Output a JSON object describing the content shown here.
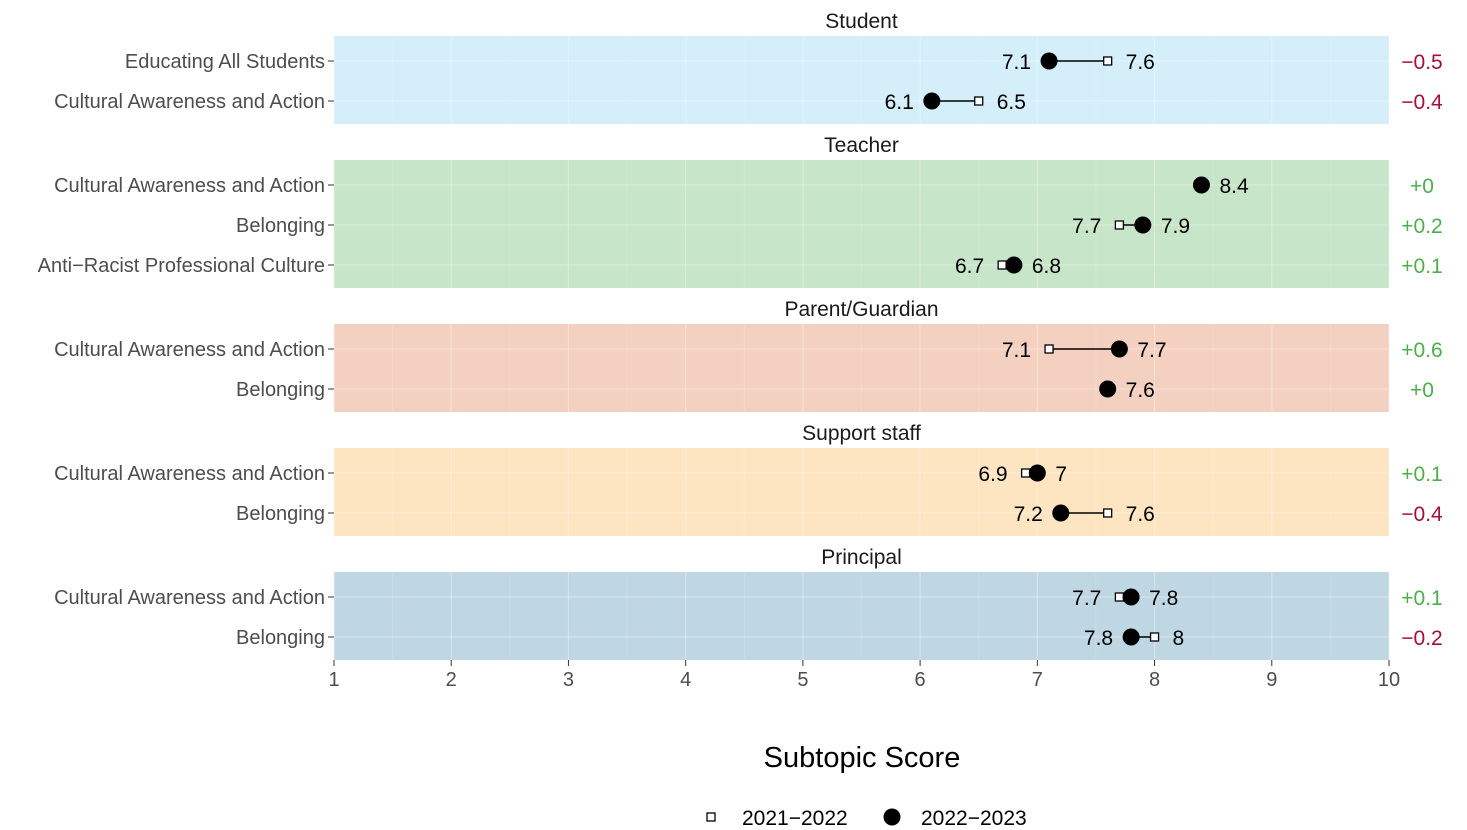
{
  "chart_data": {
    "type": "dumbbell",
    "xlabel": "Subtopic Score",
    "xlim": [
      1,
      10
    ],
    "x_ticks": [
      1,
      2,
      3,
      4,
      5,
      6,
      7,
      8,
      9,
      10
    ],
    "grid": true,
    "legend": {
      "placement": "bottom",
      "entries": [
        {
          "label": "2021−2022",
          "marker": "open-square"
        },
        {
          "label": "2022−2023",
          "marker": "filled-circle"
        }
      ]
    },
    "colors": {
      "increase": "#4daf4a",
      "decrease": "#a50f3a",
      "student_panel": "#d4eefa",
      "teacher_panel": "#c7e5c8",
      "parent_panel": "#f4d0c0",
      "support_panel": "#fde5c2",
      "principal_panel": "#bfd7e3",
      "marker": "#000000"
    },
    "panels": [
      {
        "title": "Student",
        "color": "#d4eefa",
        "rows": [
          {
            "label": "Educating All Students",
            "y2021": 7.6,
            "y2022": 7.1,
            "change": "−0.5",
            "direction": "down"
          },
          {
            "label": "Cultural Awareness and Action",
            "y2021": 6.5,
            "y2022": 6.1,
            "change": "−0.4",
            "direction": "down"
          }
        ]
      },
      {
        "title": "Teacher",
        "color": "#c7e5c8",
        "rows": [
          {
            "label": "Cultural Awareness and Action",
            "y2021": 8.4,
            "y2022": 8.4,
            "change": "+0",
            "direction": "up"
          },
          {
            "label": "Belonging",
            "y2021": 7.7,
            "y2022": 7.9,
            "change": "+0.2",
            "direction": "up"
          },
          {
            "label": "Anti−Racist Professional Culture",
            "y2021": 6.7,
            "y2022": 6.8,
            "change": "+0.1",
            "direction": "up"
          }
        ]
      },
      {
        "title": "Parent/Guardian",
        "color": "#f4d0c0",
        "rows": [
          {
            "label": "Cultural Awareness and Action",
            "y2021": 7.1,
            "y2022": 7.7,
            "change": "+0.6",
            "direction": "up"
          },
          {
            "label": "Belonging",
            "y2021": 7.6,
            "y2022": 7.6,
            "change": "+0",
            "direction": "up"
          }
        ]
      },
      {
        "title": "Support staff",
        "color": "#fde5c2",
        "rows": [
          {
            "label": "Cultural Awareness and Action",
            "y2021": 6.9,
            "y2022": 7,
            "change": "+0.1",
            "direction": "up"
          },
          {
            "label": "Belonging",
            "y2021": 7.6,
            "y2022": 7.2,
            "change": "−0.4",
            "direction": "down"
          }
        ]
      },
      {
        "title": "Principal",
        "color": "#bfd7e3",
        "rows": [
          {
            "label": "Cultural Awareness and Action",
            "y2021": 7.7,
            "y2022": 7.8,
            "change": "+0.1",
            "direction": "up"
          },
          {
            "label": "Belonging",
            "y2021": 8,
            "y2022": 7.8,
            "change": "−0.2",
            "direction": "down"
          }
        ]
      }
    ]
  }
}
